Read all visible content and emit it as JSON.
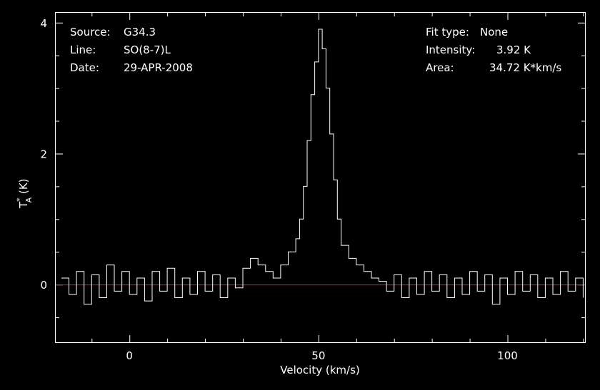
{
  "info_left": {
    "source_key": "Source:",
    "source_val": "G34.3",
    "line_key": "Line:",
    "line_val": "SO(8-7)L",
    "date_key": "Date:",
    "date_val": "29-APR-2008"
  },
  "info_right": {
    "fit_key": "Fit type:",
    "fit_val": "None",
    "intensity_key": "Intensity:",
    "intensity_val": "3.92 K",
    "area_key": "Area:",
    "area_val": "34.72 K*km/s"
  },
  "colors": {
    "background": "#000000",
    "foreground": "#ffffff",
    "baseline": "#dd2222"
  },
  "chart_data": {
    "type": "line",
    "xlabel": "Velocity (km/s)",
    "ylabel_main": "T",
    "ylabel_sup": "*",
    "ylabel_sub": "A",
    "ylabel_unit": " (K)",
    "xlim": [
      -19.5,
      120.5
    ],
    "ylim": [
      -0.88,
      4.15
    ],
    "xticks_major": [
      0,
      50,
      100
    ],
    "xtick_labels": [
      "0",
      "50",
      "100"
    ],
    "yticks_major": [
      0,
      2,
      4
    ],
    "ytick_labels": [
      "0",
      "2",
      "4"
    ],
    "baseline_y": 0,
    "series": [
      {
        "points": [
          [
            -18,
            0.1
          ],
          [
            -16,
            -0.15
          ],
          [
            -14,
            0.2
          ],
          [
            -12,
            -0.3
          ],
          [
            -10,
            0.15
          ],
          [
            -8,
            -0.2
          ],
          [
            -6,
            0.3
          ],
          [
            -4,
            -0.1
          ],
          [
            -2,
            0.2
          ],
          [
            0,
            -0.15
          ],
          [
            2,
            0.1
          ],
          [
            4,
            -0.25
          ],
          [
            6,
            0.2
          ],
          [
            8,
            -0.1
          ],
          [
            10,
            0.25
          ],
          [
            12,
            -0.2
          ],
          [
            14,
            0.1
          ],
          [
            16,
            -0.15
          ],
          [
            18,
            0.2
          ],
          [
            20,
            -0.1
          ],
          [
            22,
            0.15
          ],
          [
            24,
            -0.2
          ],
          [
            26,
            0.1
          ],
          [
            28,
            -0.05
          ],
          [
            30,
            0.25
          ],
          [
            32,
            0.4
          ],
          [
            34,
            0.3
          ],
          [
            36,
            0.2
          ],
          [
            38,
            0.1
          ],
          [
            40,
            0.3
          ],
          [
            42,
            0.5
          ],
          [
            44,
            0.7
          ],
          [
            45,
            1.0
          ],
          [
            46,
            1.5
          ],
          [
            47,
            2.2
          ],
          [
            48,
            2.9
          ],
          [
            49,
            3.4
          ],
          [
            50,
            3.9
          ],
          [
            51,
            3.6
          ],
          [
            52,
            3.0
          ],
          [
            53,
            2.3
          ],
          [
            54,
            1.6
          ],
          [
            55,
            1.0
          ],
          [
            56,
            0.6
          ],
          [
            58,
            0.4
          ],
          [
            60,
            0.3
          ],
          [
            62,
            0.2
          ],
          [
            64,
            0.1
          ],
          [
            66,
            0.05
          ],
          [
            68,
            -0.1
          ],
          [
            70,
            0.15
          ],
          [
            72,
            -0.2
          ],
          [
            74,
            0.1
          ],
          [
            76,
            -0.15
          ],
          [
            78,
            0.2
          ],
          [
            80,
            -0.1
          ],
          [
            82,
            0.15
          ],
          [
            84,
            -0.2
          ],
          [
            86,
            0.1
          ],
          [
            88,
            -0.15
          ],
          [
            90,
            0.2
          ],
          [
            92,
            -0.1
          ],
          [
            94,
            0.15
          ],
          [
            96,
            -0.3
          ],
          [
            98,
            0.1
          ],
          [
            100,
            -0.15
          ],
          [
            102,
            0.2
          ],
          [
            104,
            -0.1
          ],
          [
            106,
            0.15
          ],
          [
            108,
            -0.2
          ],
          [
            110,
            0.1
          ],
          [
            112,
            -0.15
          ],
          [
            114,
            0.2
          ],
          [
            116,
            -0.1
          ],
          [
            118,
            0.1
          ],
          [
            120,
            -0.2
          ]
        ]
      }
    ]
  }
}
